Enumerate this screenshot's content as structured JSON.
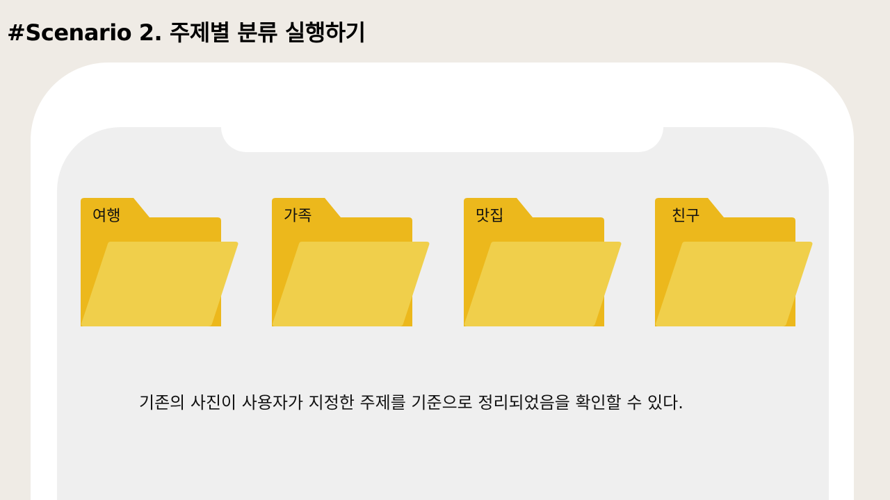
{
  "slide": {
    "title": "#Scenario 2. 주제별 분류 실행하기"
  },
  "folders": [
    {
      "label": "여행",
      "icon": "folder-icon"
    },
    {
      "label": "가족",
      "icon": "folder-icon"
    },
    {
      "label": "맛집",
      "icon": "folder-icon"
    },
    {
      "label": "친구",
      "icon": "folder-icon"
    }
  ],
  "caption": "기존의 사진이 사용자가 지정한 주제를 기준으로 정리되었음을 확인할 수 있다.",
  "colors": {
    "background": "#EFEBE5",
    "phone_frame": "#FFFFFF",
    "screen": "#EFEFEF",
    "folder_back": "#ECB81C",
    "folder_front": "#F0CF4B",
    "text": "#111111"
  }
}
